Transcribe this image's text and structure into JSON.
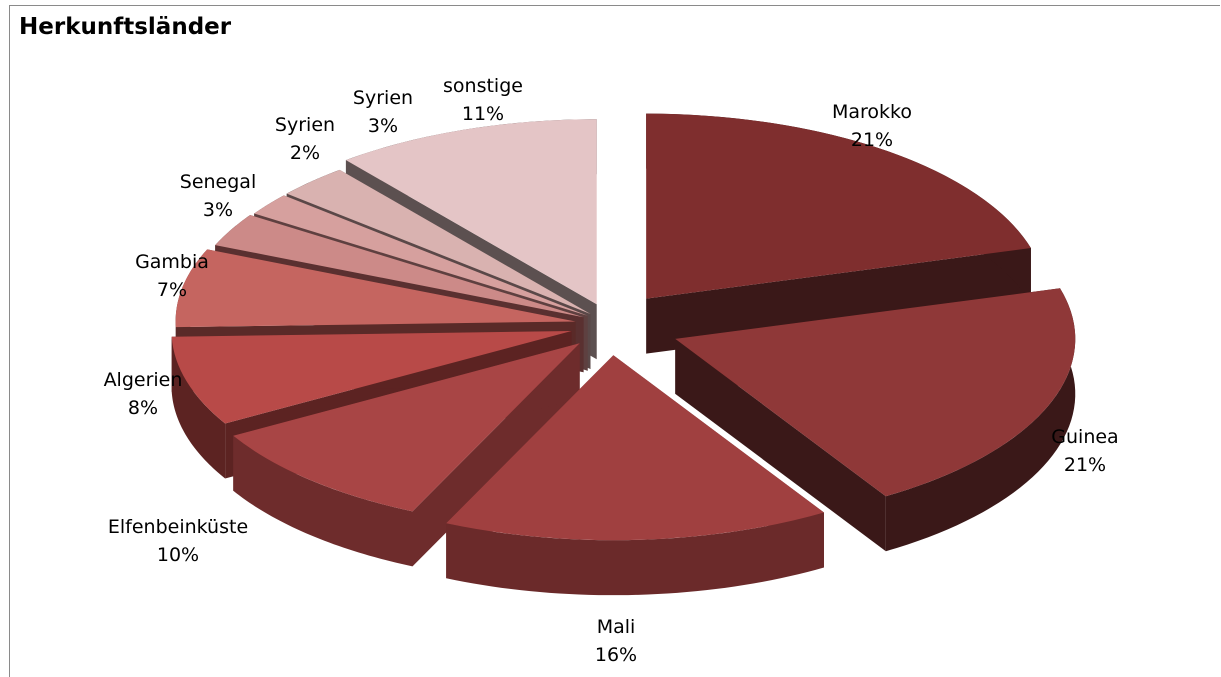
{
  "chart_data": {
    "type": "pie",
    "style": "3d-exploded",
    "title": "Herkunftsländer",
    "slices": [
      {
        "label": "Marokko",
        "value": 21,
        "pct_label": "21%",
        "color": "#7f2e2e",
        "side": "#3a1818"
      },
      {
        "label": "Guinea",
        "value": 21,
        "pct_label": "21%",
        "color": "#8f3838",
        "side": "#3a1818"
      },
      {
        "label": "Mali",
        "value": 16,
        "pct_label": "16%",
        "color": "#a04040",
        "side": "#6b2a2a"
      },
      {
        "label": "Elfenbeinküste",
        "value": 10,
        "pct_label": "10%",
        "color": "#a84545",
        "side": "#6e2c2c"
      },
      {
        "label": "Algerien",
        "value": 8,
        "pct_label": "8%",
        "color": "#b84a48",
        "side": "#5c2322"
      },
      {
        "label": "Gambia",
        "value": 7,
        "pct_label": "7%",
        "color": "#c56560",
        "side": "#5a2a28"
      },
      {
        "label": "Senegal",
        "value": 3,
        "pct_label": "3%",
        "color": "#cc8a88",
        "side": "#5a3030"
      },
      {
        "label": "Syrien",
        "value": 2,
        "pct_label": "2%",
        "color": "#d6a09e",
        "side": "#5e4040"
      },
      {
        "label": "Syrien",
        "value": 3,
        "pct_label": "3%",
        "color": "#d9b2b0",
        "side": "#5a4848"
      },
      {
        "label": "sonstige",
        "value": 11,
        "pct_label": "11%",
        "color": "#e4c5c6",
        "side": "#5c5050"
      }
    ],
    "legend": "none"
  }
}
